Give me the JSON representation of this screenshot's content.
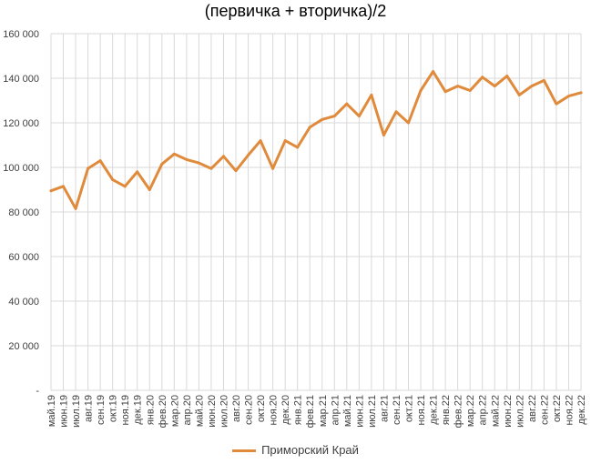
{
  "chart_data": {
    "type": "line",
    "title": "(первичка + вторичка)/2",
    "xlabel": "",
    "ylabel": "",
    "ylim": [
      0,
      160000
    ],
    "yticks": [
      "-",
      "20 000",
      "40 000",
      "60 000",
      "80 000",
      "100 000",
      "120 000",
      "140 000",
      "160 000"
    ],
    "ytick_values": [
      0,
      20000,
      40000,
      60000,
      80000,
      100000,
      120000,
      140000,
      160000
    ],
    "grid": true,
    "legend_position": "bottom",
    "categories": [
      "май.19",
      "июн.19",
      "июл.19",
      "авг.19",
      "сен.19",
      "окт.19",
      "ноя.19",
      "дек.19",
      "янв.20",
      "фев.20",
      "мар.20",
      "апр.20",
      "май.20",
      "июн.20",
      "июл.20",
      "авг.20",
      "сен.20",
      "окт.20",
      "ноя.20",
      "дек.20",
      "янв.21",
      "фев.21",
      "мар.21",
      "апр.21",
      "май.21",
      "июн.21",
      "июл.21",
      "авг.21",
      "сен.21",
      "окт.21",
      "ноя.21",
      "дек.21",
      "янв.22",
      "фев.22",
      "мар.22",
      "апр.22",
      "май.22",
      "июн.22",
      "июл.22",
      "авг.22",
      "сен.22",
      "окт.22",
      "ноя.22",
      "дек.22"
    ],
    "series": [
      {
        "name": "Приморский Край",
        "color": "#e08a3c",
        "values": [
          89500,
          91500,
          81500,
          99500,
          103000,
          94500,
          91500,
          98000,
          90000,
          101500,
          106000,
          103500,
          102000,
          99500,
          105000,
          98500,
          105500,
          112000,
          99500,
          112000,
          109000,
          118000,
          121500,
          123000,
          128500,
          123000,
          132500,
          114500,
          125000,
          120000,
          134500,
          143000,
          134000,
          136500,
          134500,
          140500,
          136500,
          141000,
          132500,
          136500,
          139000,
          128500,
          132000,
          133500
        ]
      }
    ]
  }
}
